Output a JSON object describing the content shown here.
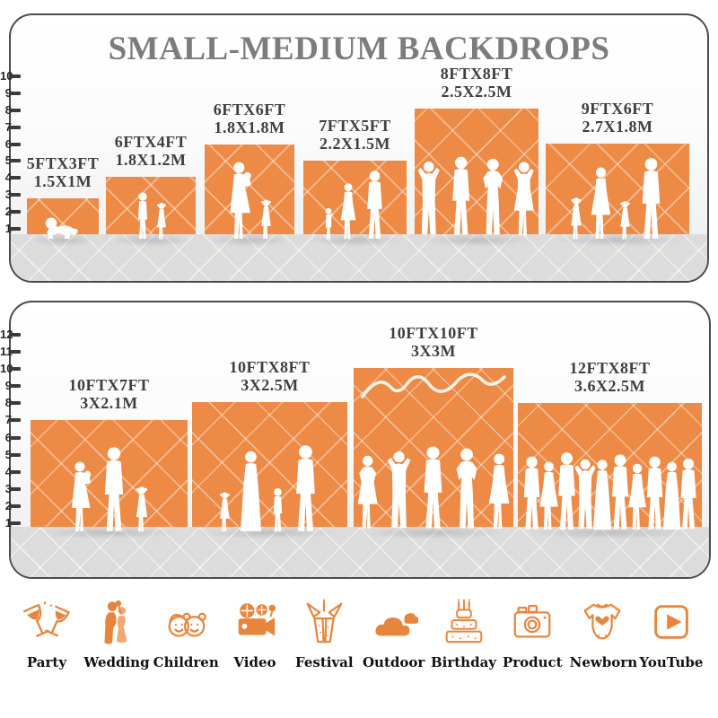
{
  "title": "SMALL-MEDIUM BACKDROPS",
  "colors": {
    "backdrop_orange": "#EC8A46",
    "title_gray": "#7C7C7C",
    "label_dark": "#3F3F3F",
    "floor_gray": "#DCDCDC",
    "panel_border": "#4B4B4B",
    "icon_orange": "#E8853D",
    "icon_label_black": "#111111"
  },
  "panels": [
    {
      "name": "small-medium",
      "ruler_unit": "ft",
      "ruler_max": 10,
      "backdrops": [
        {
          "size_ft": "5FTX3FT",
          "size_m": "1.5X1M",
          "people": [
            "crawling baby"
          ]
        },
        {
          "size_ft": "6FTX4FT",
          "size_m": "1.8X1.2M",
          "people": [
            "boy",
            "girl"
          ]
        },
        {
          "size_ft": "6FTX6FT",
          "size_m": "1.8X1.8M",
          "people": [
            "woman holding baby",
            "girl"
          ]
        },
        {
          "size_ft": "7FTX5FT",
          "size_m": "2.2X1.5M",
          "people": [
            "toddler",
            "woman",
            "man"
          ]
        },
        {
          "size_ft": "8FTX8FT",
          "size_m": "2.5X2.5M",
          "people": [
            "man",
            "man",
            "man",
            "woman"
          ]
        },
        {
          "size_ft": "9FTX6FT",
          "size_m": "2.7X1.8M",
          "people": [
            "girl",
            "woman",
            "girl",
            "man"
          ]
        }
      ]
    },
    {
      "name": "medium-large",
      "ruler_unit": "ft",
      "ruler_max": 12,
      "backdrops": [
        {
          "size_ft": "10FTX7FT",
          "size_m": "3X2.1M",
          "people": [
            "woman holding baby",
            "man",
            "girl"
          ]
        },
        {
          "size_ft": "10FTX8FT",
          "size_m": "3X2.5M",
          "people": [
            "girl",
            "woman",
            "boy",
            "man"
          ]
        },
        {
          "size_ft": "10FTX10FT",
          "size_m": "3X3M",
          "people": [
            "woman",
            "man",
            "man",
            "man",
            "woman"
          ]
        },
        {
          "size_ft": "12FTX8FT",
          "size_m": "3.6X2.5M",
          "people": [
            "crowd of ten people"
          ]
        }
      ]
    }
  ],
  "categories": [
    {
      "label": "Party",
      "icon": "party-icon"
    },
    {
      "label": "Wedding",
      "icon": "wedding-icon"
    },
    {
      "label": "Children",
      "icon": "children-icon"
    },
    {
      "label": "Video",
      "icon": "video-icon"
    },
    {
      "label": "Festival",
      "icon": "festival-icon"
    },
    {
      "label": "Outdoor",
      "icon": "outdoor-icon"
    },
    {
      "label": "Birthday",
      "icon": "birthday-icon"
    },
    {
      "label": "Product",
      "icon": "product-icon"
    },
    {
      "label": "Newborn",
      "icon": "newborn-icon"
    },
    {
      "label": "YouTube",
      "icon": "youtube-icon"
    }
  ]
}
